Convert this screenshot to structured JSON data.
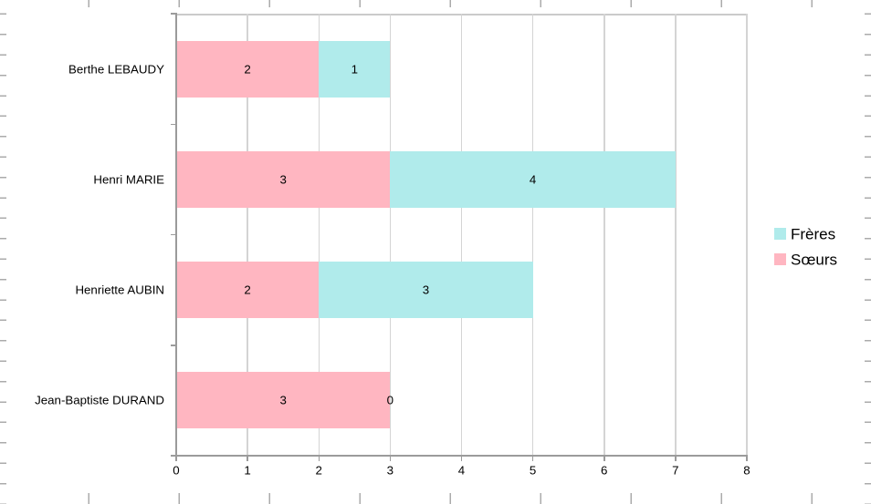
{
  "chart_data": {
    "type": "bar",
    "orientation": "horizontal",
    "stacked": true,
    "title": "",
    "xlabel": "",
    "ylabel": "",
    "categories": [
      "Berthe LEBAUDY",
      "Henri MARIE",
      "Henriette AUBIN",
      "Jean-Baptiste DURAND"
    ],
    "series": [
      {
        "name": "Sœurs",
        "color": "#ffb6c1",
        "values": [
          2,
          3,
          2,
          3
        ]
      },
      {
        "name": "Frères",
        "color": "#b0ebeb",
        "values": [
          1,
          4,
          3,
          0
        ]
      }
    ],
    "xlim": [
      0,
      8
    ],
    "xticks": [
      "0",
      "1",
      "2",
      "3",
      "4",
      "5",
      "6",
      "7",
      "8"
    ],
    "grid": "vertical-major",
    "data_labels": true,
    "legend": {
      "position": "right",
      "items": [
        {
          "label": "Frères",
          "color": "#b0ebeb"
        },
        {
          "label": "Sœurs",
          "color": "#ffb6c1"
        }
      ]
    }
  }
}
